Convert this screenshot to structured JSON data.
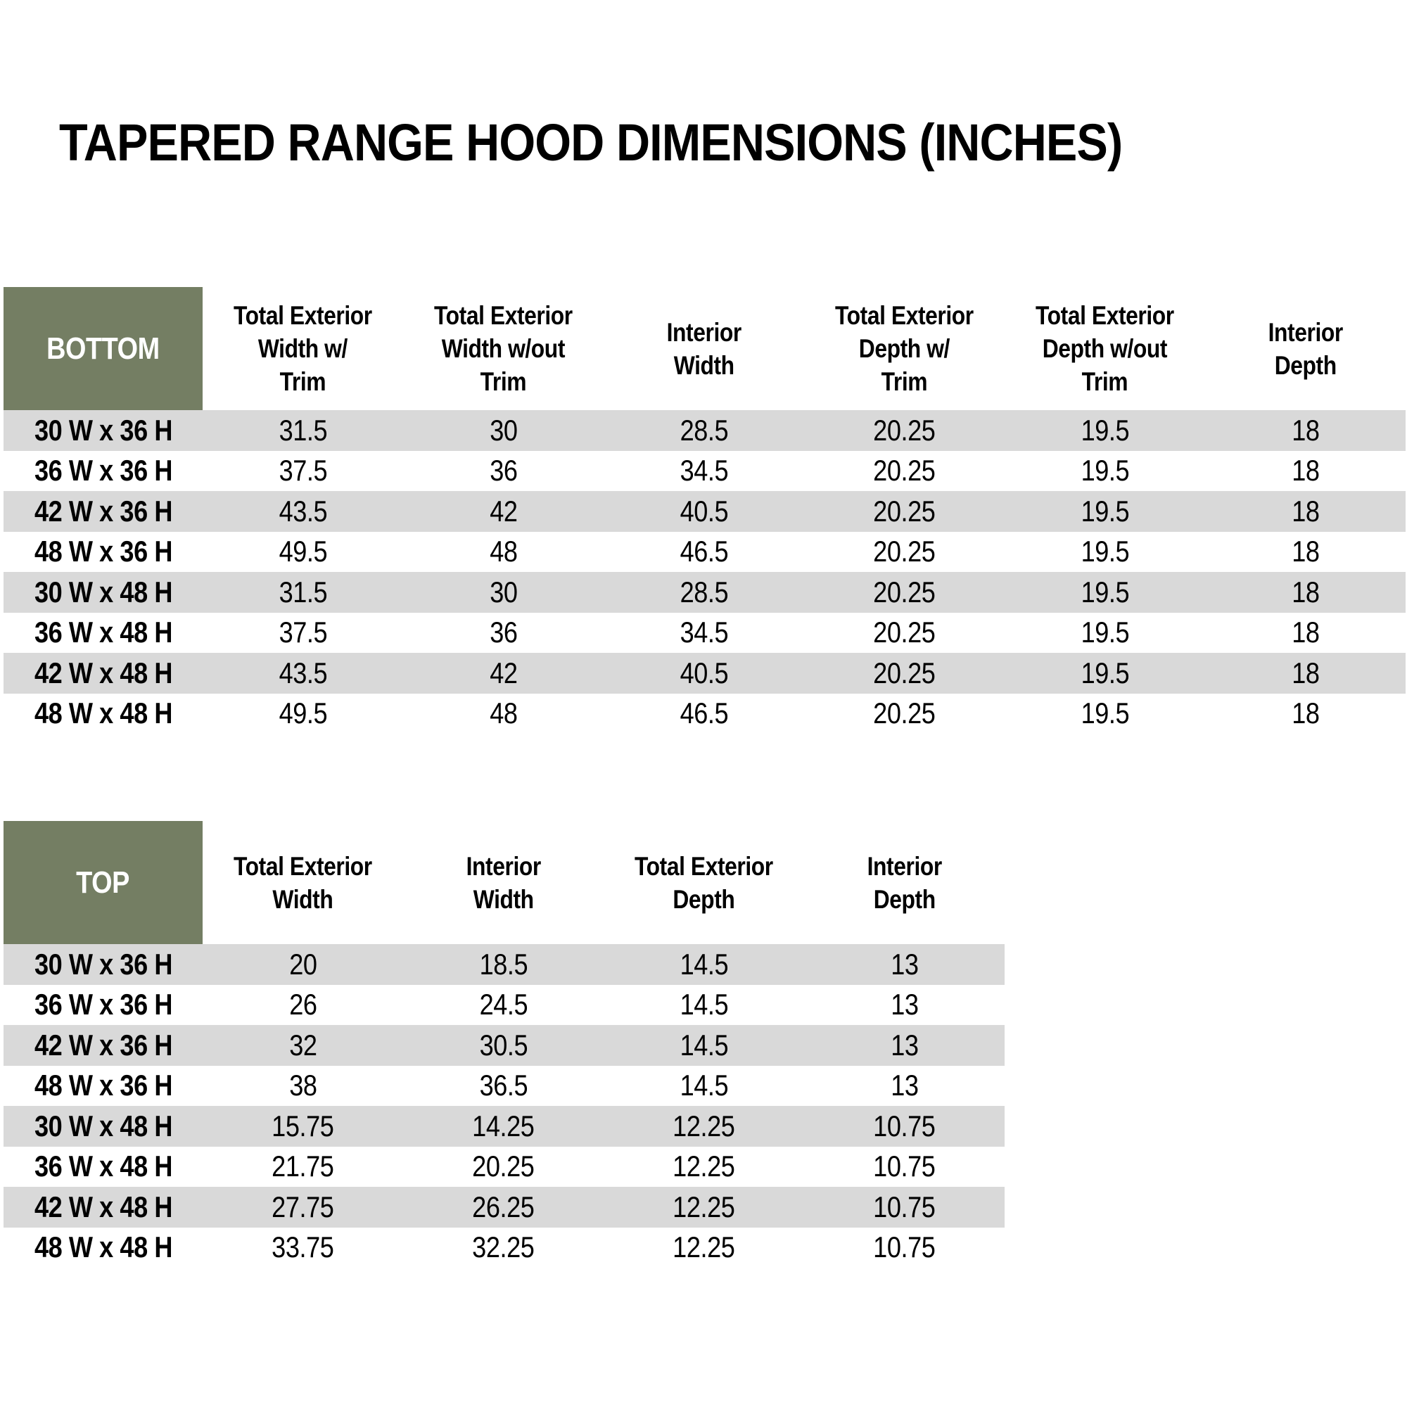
{
  "page": {
    "title": "TAPERED RANGE HOOD DIMENSIONS (INCHES)"
  },
  "colors": {
    "corner_green": "#747E63",
    "corner_text": "#FFFFFF",
    "stripe_gray": "#D9D9D9",
    "body_text": "#000000",
    "background": "#FFFFFF"
  },
  "bottom_table": {
    "corner_label": "BOTTOM",
    "columns": [
      "Total Exterior\nWidth w/\nTrim",
      "Total Exterior\nWidth w/out\nTrim",
      "Interior\nWidth",
      "Total Exterior\nDepth w/\nTrim",
      "Total Exterior\nDepth w/out\nTrim",
      "Interior\nDepth"
    ],
    "rows": [
      {
        "label": "30 W x 36 H",
        "values": [
          "31.5",
          "30",
          "28.5",
          "20.25",
          "19.5",
          "18"
        ]
      },
      {
        "label": "36 W x 36 H",
        "values": [
          "37.5",
          "36",
          "34.5",
          "20.25",
          "19.5",
          "18"
        ]
      },
      {
        "label": "42 W x 36 H",
        "values": [
          "43.5",
          "42",
          "40.5",
          "20.25",
          "19.5",
          "18"
        ]
      },
      {
        "label": "48 W x 36 H",
        "values": [
          "49.5",
          "48",
          "46.5",
          "20.25",
          "19.5",
          "18"
        ]
      },
      {
        "label": "30 W x 48 H",
        "values": [
          "31.5",
          "30",
          "28.5",
          "20.25",
          "19.5",
          "18"
        ]
      },
      {
        "label": "36 W x 48 H",
        "values": [
          "37.5",
          "36",
          "34.5",
          "20.25",
          "19.5",
          "18"
        ]
      },
      {
        "label": "42 W x 48 H",
        "values": [
          "43.5",
          "42",
          "40.5",
          "20.25",
          "19.5",
          "18"
        ]
      },
      {
        "label": "48 W x 48 H",
        "values": [
          "49.5",
          "48",
          "46.5",
          "20.25",
          "19.5",
          "18"
        ]
      }
    ]
  },
  "top_table": {
    "corner_label": "TOP",
    "columns": [
      "Total Exterior\nWidth",
      "Interior\nWidth",
      "Total Exterior\nDepth",
      "Interior\nDepth"
    ],
    "rows": [
      {
        "label": "30 W x 36 H",
        "values": [
          "20",
          "18.5",
          "14.5",
          "13"
        ]
      },
      {
        "label": "36 W x 36 H",
        "values": [
          "26",
          "24.5",
          "14.5",
          "13"
        ]
      },
      {
        "label": "42 W x 36 H",
        "values": [
          "32",
          "30.5",
          "14.5",
          "13"
        ]
      },
      {
        "label": "48 W x 36 H",
        "values": [
          "38",
          "36.5",
          "14.5",
          "13"
        ]
      },
      {
        "label": "30 W x 48 H",
        "values": [
          "15.75",
          "14.25",
          "12.25",
          "10.75"
        ]
      },
      {
        "label": "36 W x 48 H",
        "values": [
          "21.75",
          "20.25",
          "12.25",
          "10.75"
        ]
      },
      {
        "label": "42 W x 48 H",
        "values": [
          "27.75",
          "26.25",
          "12.25",
          "10.75"
        ]
      },
      {
        "label": "48 W x 48 H",
        "values": [
          "33.75",
          "32.25",
          "12.25",
          "10.75"
        ]
      }
    ]
  }
}
